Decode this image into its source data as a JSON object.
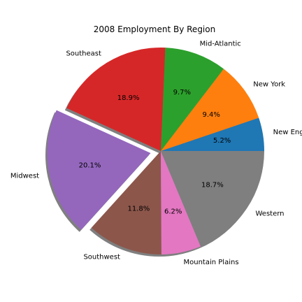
{
  "chart_data": {
    "type": "pie",
    "title": "2008 Employment By Region",
    "slices": [
      {
        "label": "New England",
        "value": 5.2,
        "pct_label": "5.2%",
        "color": "#1f77b4",
        "exploded": false
      },
      {
        "label": "New York",
        "value": 9.4,
        "pct_label": "9.4%",
        "color": "#ff7f0e",
        "exploded": false
      },
      {
        "label": "Mid-Atlantic",
        "value": 9.7,
        "pct_label": "9.7%",
        "color": "#2ca02c",
        "exploded": false
      },
      {
        "label": "Southeast",
        "value": 18.9,
        "pct_label": "18.9%",
        "color": "#d62728",
        "exploded": false
      },
      {
        "label": "Midwest",
        "value": 20.1,
        "pct_label": "20.1%",
        "color": "#9467bd",
        "exploded": true
      },
      {
        "label": "Southwest",
        "value": 11.8,
        "pct_label": "11.8%",
        "color": "#8c564b",
        "exploded": false
      },
      {
        "label": "Mountain Plains",
        "value": 6.2,
        "pct_label": "6.2%",
        "color": "#e377c2",
        "exploded": false
      },
      {
        "label": "Western",
        "value": 18.7,
        "pct_label": "18.7%",
        "color": "#7f7f7f",
        "exploded": false
      }
    ],
    "start_angle_deg": 0,
    "direction": "counterclockwise",
    "shadow": true
  }
}
